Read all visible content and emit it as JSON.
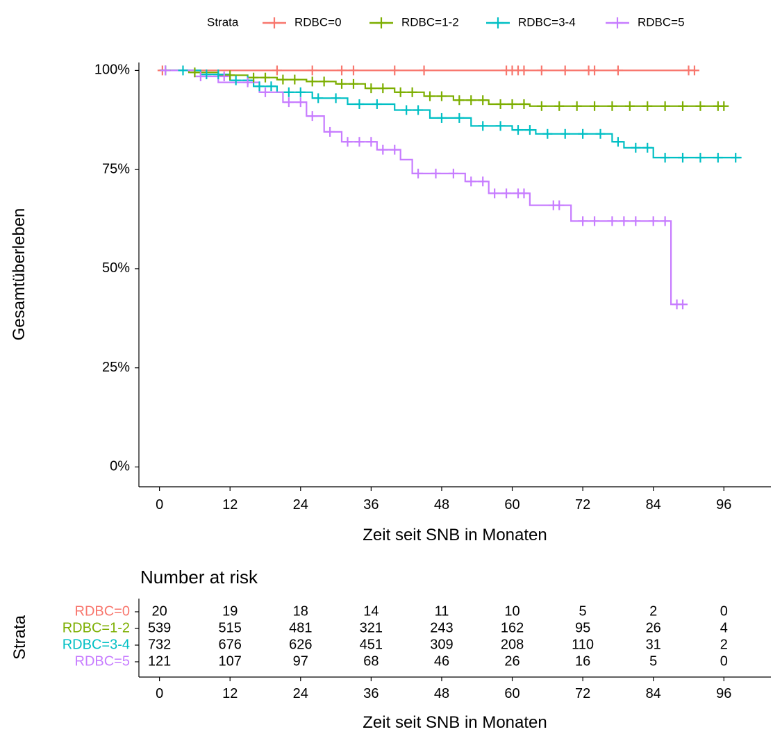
{
  "legend": {
    "title": "Strata",
    "items": [
      "RDBC=0",
      "RDBC=1-2",
      "RDBC=3-4",
      "RDBC=5"
    ]
  },
  "colors": {
    "RDBC=0": "#F8766D",
    "RDBC=1-2": "#7CAE00",
    "RDBC=3-4": "#00BFC4",
    "RDBC=5": "#C77CFF"
  },
  "risk_table": {
    "title": "Number at risk",
    "ylabel": "Strata",
    "xlabel": "Zeit seit SNB in Monaten"
  },
  "chart_data": {
    "type": "line",
    "step": true,
    "xlabel": "Zeit seit SNB in Monaten",
    "ylabel": "Gesamtüberleben",
    "xlim": [
      -3.5,
      104
    ],
    "ylim": [
      -0.05,
      1.02
    ],
    "xticks": [
      0,
      12,
      24,
      36,
      48,
      60,
      72,
      84,
      96
    ],
    "yticks": [
      0,
      0.25,
      0.5,
      0.75,
      1.0
    ],
    "ytick_labels": [
      "0%",
      "25%",
      "50%",
      "75%",
      "100%"
    ],
    "legend_position": "top",
    "series": [
      {
        "name": "RDBC=0",
        "points": [
          [
            0,
            1.0
          ],
          [
            91,
            1.0
          ]
        ],
        "censored": [
          [
            0.5,
            1.0
          ],
          [
            1,
            1.0
          ],
          [
            20,
            1.0
          ],
          [
            26,
            1.0
          ],
          [
            31,
            1.0
          ],
          [
            33,
            1.0
          ],
          [
            40,
            1.0
          ],
          [
            45,
            1.0
          ],
          [
            59,
            1.0
          ],
          [
            60,
            1.0
          ],
          [
            61,
            1.0
          ],
          [
            62,
            1.0
          ],
          [
            65,
            1.0
          ],
          [
            69,
            1.0
          ],
          [
            73,
            1.0
          ],
          [
            74,
            1.0
          ],
          [
            78,
            1.0
          ],
          [
            90,
            1.0
          ],
          [
            91,
            1.0
          ]
        ]
      },
      {
        "name": "RDBC=1-2",
        "points": [
          [
            0,
            1.0
          ],
          [
            5,
            1.0
          ],
          [
            5,
            0.995
          ],
          [
            10,
            0.995
          ],
          [
            10,
            0.988
          ],
          [
            15,
            0.988
          ],
          [
            15,
            0.982
          ],
          [
            20,
            0.982
          ],
          [
            20,
            0.977
          ],
          [
            25,
            0.977
          ],
          [
            25,
            0.972
          ],
          [
            30,
            0.972
          ],
          [
            30,
            0.966
          ],
          [
            35,
            0.966
          ],
          [
            35,
            0.955
          ],
          [
            40,
            0.955
          ],
          [
            40,
            0.945
          ],
          [
            45,
            0.945
          ],
          [
            45,
            0.935
          ],
          [
            50,
            0.935
          ],
          [
            50,
            0.925
          ],
          [
            56,
            0.925
          ],
          [
            56,
            0.915
          ],
          [
            63,
            0.915
          ],
          [
            63,
            0.91
          ],
          [
            96,
            0.91
          ]
        ],
        "censored": [
          [
            1,
            1.0
          ],
          [
            6,
            0.995
          ],
          [
            12,
            0.988
          ],
          [
            16,
            0.982
          ],
          [
            18,
            0.982
          ],
          [
            21,
            0.977
          ],
          [
            23,
            0.977
          ],
          [
            26,
            0.972
          ],
          [
            28,
            0.972
          ],
          [
            31,
            0.966
          ],
          [
            33,
            0.966
          ],
          [
            36,
            0.955
          ],
          [
            38,
            0.955
          ],
          [
            41,
            0.945
          ],
          [
            43,
            0.945
          ],
          [
            46,
            0.935
          ],
          [
            48,
            0.935
          ],
          [
            51,
            0.925
          ],
          [
            53,
            0.925
          ],
          [
            55,
            0.925
          ],
          [
            58,
            0.915
          ],
          [
            60,
            0.915
          ],
          [
            62,
            0.915
          ],
          [
            65,
            0.91
          ],
          [
            68,
            0.91
          ],
          [
            71,
            0.91
          ],
          [
            74,
            0.91
          ],
          [
            77,
            0.91
          ],
          [
            80,
            0.91
          ],
          [
            83,
            0.91
          ],
          [
            86,
            0.91
          ],
          [
            89,
            0.91
          ],
          [
            92,
            0.91
          ],
          [
            95,
            0.91
          ],
          [
            96,
            0.91
          ]
        ]
      },
      {
        "name": "RDBC=3-4",
        "points": [
          [
            0,
            1.0
          ],
          [
            7,
            1.0
          ],
          [
            7,
            0.99
          ],
          [
            12,
            0.99
          ],
          [
            12,
            0.975
          ],
          [
            16,
            0.975
          ],
          [
            16,
            0.96
          ],
          [
            20,
            0.96
          ],
          [
            20,
            0.945
          ],
          [
            26,
            0.945
          ],
          [
            26,
            0.93
          ],
          [
            32,
            0.93
          ],
          [
            32,
            0.915
          ],
          [
            40,
            0.915
          ],
          [
            40,
            0.9
          ],
          [
            46,
            0.9
          ],
          [
            46,
            0.88
          ],
          [
            53,
            0.88
          ],
          [
            53,
            0.86
          ],
          [
            60,
            0.86
          ],
          [
            60,
            0.85
          ],
          [
            64,
            0.85
          ],
          [
            64,
            0.84
          ],
          [
            77,
            0.84
          ],
          [
            77,
            0.82
          ],
          [
            79,
            0.82
          ],
          [
            79,
            0.805
          ],
          [
            84,
            0.805
          ],
          [
            84,
            0.78
          ],
          [
            99,
            0.78
          ]
        ],
        "censored": [
          [
            1,
            1.0
          ],
          [
            4,
            1.0
          ],
          [
            8,
            0.99
          ],
          [
            10,
            0.99
          ],
          [
            13,
            0.975
          ],
          [
            15,
            0.975
          ],
          [
            17,
            0.96
          ],
          [
            19,
            0.96
          ],
          [
            22,
            0.945
          ],
          [
            24,
            0.945
          ],
          [
            27,
            0.93
          ],
          [
            30,
            0.93
          ],
          [
            34,
            0.915
          ],
          [
            37,
            0.915
          ],
          [
            42,
            0.9
          ],
          [
            44,
            0.9
          ],
          [
            48,
            0.88
          ],
          [
            51,
            0.88
          ],
          [
            55,
            0.86
          ],
          [
            58,
            0.86
          ],
          [
            61,
            0.85
          ],
          [
            63,
            0.85
          ],
          [
            66,
            0.84
          ],
          [
            69,
            0.84
          ],
          [
            72,
            0.84
          ],
          [
            75,
            0.84
          ],
          [
            78,
            0.82
          ],
          [
            81,
            0.805
          ],
          [
            83,
            0.805
          ],
          [
            86,
            0.78
          ],
          [
            89,
            0.78
          ],
          [
            92,
            0.78
          ],
          [
            95,
            0.78
          ],
          [
            98,
            0.78
          ]
        ]
      },
      {
        "name": "RDBC=5",
        "points": [
          [
            0,
            1.0
          ],
          [
            6,
            1.0
          ],
          [
            6,
            0.985
          ],
          [
            10,
            0.985
          ],
          [
            10,
            0.97
          ],
          [
            17,
            0.97
          ],
          [
            17,
            0.945
          ],
          [
            21,
            0.945
          ],
          [
            21,
            0.92
          ],
          [
            25,
            0.92
          ],
          [
            25,
            0.885
          ],
          [
            28,
            0.885
          ],
          [
            28,
            0.845
          ],
          [
            31,
            0.845
          ],
          [
            31,
            0.82
          ],
          [
            37,
            0.82
          ],
          [
            37,
            0.8
          ],
          [
            41,
            0.8
          ],
          [
            41,
            0.775
          ],
          [
            43,
            0.775
          ],
          [
            43,
            0.74
          ],
          [
            52,
            0.74
          ],
          [
            52,
            0.72
          ],
          [
            56,
            0.72
          ],
          [
            56,
            0.69
          ],
          [
            63,
            0.69
          ],
          [
            63,
            0.66
          ],
          [
            70,
            0.66
          ],
          [
            70,
            0.62
          ],
          [
            87,
            0.62
          ],
          [
            87,
            0.41
          ],
          [
            89,
            0.41
          ]
        ],
        "censored": [
          [
            1,
            1.0
          ],
          [
            7,
            0.985
          ],
          [
            11,
            0.985
          ],
          [
            15,
            0.97
          ],
          [
            18,
            0.945
          ],
          [
            22,
            0.92
          ],
          [
            24,
            0.92
          ],
          [
            26,
            0.885
          ],
          [
            29,
            0.845
          ],
          [
            32,
            0.82
          ],
          [
            34,
            0.82
          ],
          [
            36,
            0.82
          ],
          [
            38,
            0.8
          ],
          [
            40,
            0.8
          ],
          [
            44,
            0.74
          ],
          [
            47,
            0.74
          ],
          [
            50,
            0.74
          ],
          [
            53,
            0.72
          ],
          [
            55,
            0.72
          ],
          [
            57,
            0.69
          ],
          [
            59,
            0.69
          ],
          [
            61,
            0.69
          ],
          [
            62,
            0.69
          ],
          [
            67,
            0.66
          ],
          [
            68,
            0.66
          ],
          [
            72,
            0.62
          ],
          [
            74,
            0.62
          ],
          [
            77,
            0.62
          ],
          [
            79,
            0.62
          ],
          [
            81,
            0.62
          ],
          [
            84,
            0.62
          ],
          [
            86,
            0.62
          ],
          [
            88,
            0.41
          ],
          [
            89,
            0.41
          ]
        ]
      }
    ]
  },
  "risk_data": {
    "times": [
      0,
      12,
      24,
      36,
      48,
      60,
      72,
      84,
      96
    ],
    "rows": [
      {
        "label": "RDBC=0",
        "values": [
          20,
          19,
          18,
          14,
          11,
          10,
          5,
          2,
          0
        ]
      },
      {
        "label": "RDBC=1-2",
        "values": [
          539,
          515,
          481,
          321,
          243,
          162,
          95,
          26,
          4
        ]
      },
      {
        "label": "RDBC=3-4",
        "values": [
          732,
          676,
          626,
          451,
          309,
          208,
          110,
          31,
          2
        ]
      },
      {
        "label": "RDBC=5",
        "values": [
          121,
          107,
          97,
          68,
          46,
          26,
          16,
          5,
          0
        ]
      }
    ]
  }
}
